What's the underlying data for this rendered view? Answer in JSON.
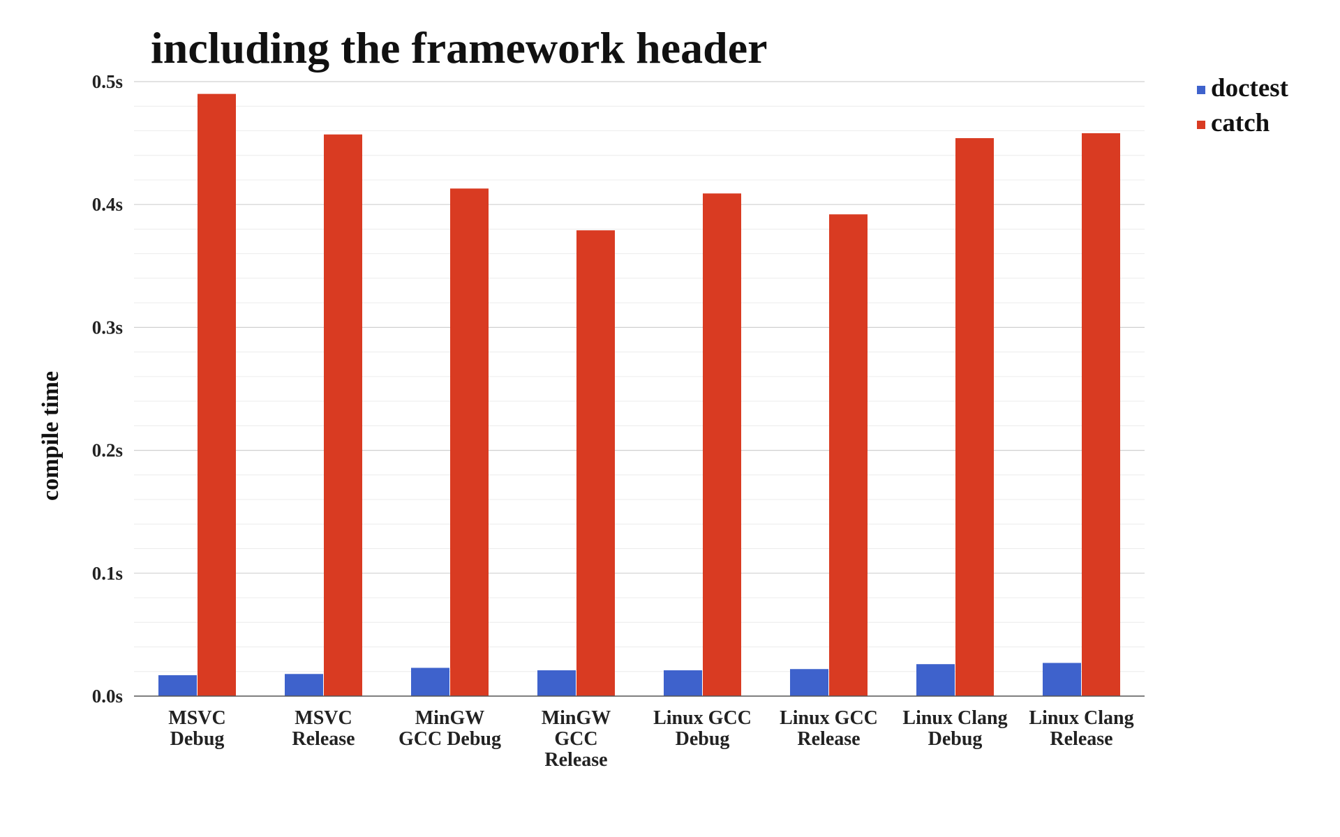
{
  "chart_data": {
    "type": "bar",
    "title": "including the framework header",
    "xlabel": "",
    "ylabel": "compile time",
    "ylim": [
      0,
      0.5
    ],
    "yticks": [
      "0.0s",
      "0.1s",
      "0.2s",
      "0.3s",
      "0.4s",
      "0.5s"
    ],
    "categories": [
      [
        "MSVC",
        "Debug"
      ],
      [
        "MSVC",
        "Release"
      ],
      [
        "MinGW",
        "GCC Debug"
      ],
      [
        "MinGW",
        "GCC",
        "Release"
      ],
      [
        "Linux GCC",
        "Debug"
      ],
      [
        "Linux GCC",
        "Release"
      ],
      [
        "Linux Clang",
        "Debug"
      ],
      [
        "Linux Clang",
        "Release"
      ]
    ],
    "series": [
      {
        "name": "doctest",
        "color": "#3e62cc",
        "values": [
          0.017,
          0.018,
          0.023,
          0.021,
          0.021,
          0.022,
          0.026,
          0.027
        ]
      },
      {
        "name": "catch",
        "color": "#d93b22",
        "values": [
          0.49,
          0.457,
          0.413,
          0.379,
          0.409,
          0.392,
          0.454,
          0.458
        ]
      }
    ],
    "grid": true,
    "legend_position": "top-right"
  }
}
